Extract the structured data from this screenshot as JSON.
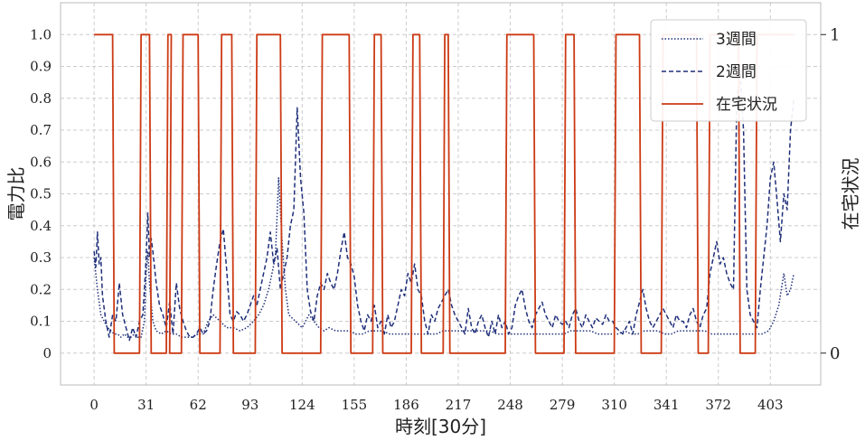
{
  "chart_data": {
    "type": "line",
    "xlabel": "時刻[30分]",
    "ylabel": "電力比",
    "ylabel_right": "在宅状況",
    "xlim": [
      -20,
      433
    ],
    "ylim": [
      -0.1,
      1.1
    ],
    "y2lim": [
      -0.1,
      1.1
    ],
    "x_ticks": [
      0,
      31,
      62,
      93,
      124,
      155,
      186,
      217,
      248,
      279,
      310,
      341,
      372,
      403
    ],
    "y_ticks": [
      0,
      0.1,
      0.2,
      0.3,
      0.4,
      0.5,
      0.6,
      0.7,
      0.8,
      0.9,
      1.0
    ],
    "y_tick_labels": [
      "0",
      "0.1",
      "0.2",
      "0.3",
      "0.4",
      "0.5",
      "0.6",
      "0.7",
      "0.8",
      "0.9",
      "1.0"
    ],
    "y2_ticks": [
      0,
      1
    ],
    "y2_tick_labels": [
      "0",
      "1"
    ],
    "grid": true,
    "legend_position": "top-right",
    "colors": {
      "three_week": "#1f2f7a",
      "two_week": "#1f2f7a",
      "occupancy": "#cc3a14",
      "grid": "#cccccc",
      "frame": "#bbbbbb"
    },
    "series": [
      {
        "name": "3週間",
        "style": "dotted",
        "x": [
          0,
          2,
          4,
          6,
          8,
          10,
          12,
          14,
          16,
          18,
          20,
          22,
          24,
          26,
          28,
          30,
          31,
          32,
          33,
          35,
          37,
          40,
          43,
          46,
          49,
          52,
          55,
          58,
          62,
          65,
          68,
          71,
          75,
          79,
          83,
          87,
          91,
          95,
          98,
          101,
          104,
          106,
          108,
          110,
          112,
          114,
          116,
          120,
          124,
          128,
          131,
          134,
          137,
          140,
          144,
          148,
          152,
          156,
          160,
          164,
          168,
          172,
          176,
          180,
          184,
          188,
          192,
          196,
          200,
          204,
          208,
          212,
          216,
          220,
          224,
          228,
          232,
          236,
          240,
          244,
          248,
          252,
          256,
          260,
          264,
          268,
          272,
          276,
          280,
          284,
          288,
          292,
          296,
          300,
          304,
          308,
          312,
          316,
          320,
          324,
          328,
          332,
          336,
          340,
          344,
          348,
          352,
          356,
          360,
          364,
          368,
          372,
          375,
          378,
          382,
          386,
          390,
          394,
          398,
          402,
          405,
          408,
          411,
          413,
          415,
          417
        ],
        "y": [
          0.3,
          0.2,
          0.12,
          0.1,
          0.08,
          0.07,
          0.06,
          0.06,
          0.05,
          0.06,
          0.05,
          0.05,
          0.06,
          0.05,
          0.05,
          0.1,
          0.25,
          0.32,
          0.22,
          0.1,
          0.07,
          0.06,
          0.07,
          0.06,
          0.06,
          0.05,
          0.05,
          0.05,
          0.06,
          0.06,
          0.1,
          0.12,
          0.1,
          0.08,
          0.08,
          0.07,
          0.08,
          0.1,
          0.12,
          0.15,
          0.2,
          0.25,
          0.3,
          0.55,
          0.35,
          0.2,
          0.12,
          0.1,
          0.08,
          0.12,
          0.1,
          0.08,
          0.07,
          0.08,
          0.07,
          0.07,
          0.07,
          0.06,
          0.06,
          0.07,
          0.07,
          0.07,
          0.06,
          0.06,
          0.06,
          0.06,
          0.06,
          0.06,
          0.06,
          0.06,
          0.07,
          0.07,
          0.07,
          0.07,
          0.07,
          0.07,
          0.07,
          0.07,
          0.06,
          0.06,
          0.06,
          0.06,
          0.06,
          0.06,
          0.06,
          0.06,
          0.06,
          0.06,
          0.06,
          0.07,
          0.07,
          0.07,
          0.07,
          0.06,
          0.06,
          0.06,
          0.06,
          0.07,
          0.06,
          0.06,
          0.07,
          0.07,
          0.07,
          0.06,
          0.06,
          0.07,
          0.07,
          0.07,
          0.07,
          0.07,
          0.06,
          0.06,
          0.06,
          0.06,
          0.06,
          0.06,
          0.06,
          0.06,
          0.06,
          0.07,
          0.1,
          0.15,
          0.25,
          0.18,
          0.2,
          0.25
        ]
      },
      {
        "name": "2週間",
        "style": "dashed",
        "x": [
          0,
          1,
          2,
          3,
          4,
          5,
          7,
          9,
          11,
          13,
          15,
          17,
          19,
          21,
          23,
          25,
          27,
          29,
          30,
          31,
          32,
          33,
          34,
          35,
          37,
          39,
          41,
          43,
          45,
          47,
          49,
          51,
          53,
          55,
          57,
          59,
          61,
          63,
          65,
          67,
          69,
          71,
          73,
          75,
          77,
          79,
          81,
          83,
          85,
          87,
          89,
          91,
          93,
          95,
          97,
          99,
          101,
          103,
          105,
          107,
          109,
          111,
          113,
          115,
          117,
          119,
          121,
          123,
          125,
          127,
          129,
          131,
          133,
          135,
          137,
          139,
          141,
          143,
          145,
          147,
          149,
          151,
          153,
          155,
          157,
          159,
          161,
          163,
          165,
          167,
          169,
          171,
          173,
          175,
          177,
          179,
          181,
          183,
          185,
          187,
          189,
          191,
          193,
          195,
          197,
          199,
          201,
          203,
          205,
          207,
          209,
          211,
          213,
          215,
          217,
          219,
          221,
          223,
          225,
          227,
          229,
          231,
          233,
          235,
          237,
          239,
          241,
          243,
          245,
          247,
          249,
          251,
          253,
          255,
          257,
          259,
          261,
          263,
          265,
          267,
          269,
          271,
          273,
          275,
          277,
          279,
          281,
          283,
          285,
          287,
          289,
          291,
          293,
          295,
          297,
          299,
          301,
          303,
          305,
          307,
          309,
          311,
          313,
          315,
          317,
          319,
          321,
          323,
          325,
          327,
          329,
          331,
          333,
          335,
          337,
          339,
          341,
          343,
          345,
          347,
          349,
          351,
          353,
          355,
          357,
          359,
          361,
          363,
          365,
          367,
          369,
          371,
          373,
          375,
          377,
          379,
          381,
          383,
          385,
          387,
          389,
          391,
          393,
          395,
          397,
          399,
          401,
          403,
          405,
          407,
          409,
          411,
          413,
          415,
          417
        ],
        "y": [
          0.32,
          0.27,
          0.38,
          0.28,
          0.3,
          0.18,
          0.1,
          0.05,
          0.12,
          0.1,
          0.22,
          0.12,
          0.08,
          0.04,
          0.08,
          0.05,
          0.1,
          0.12,
          0.2,
          0.3,
          0.44,
          0.3,
          0.36,
          0.32,
          0.22,
          0.15,
          0.12,
          0.08,
          0.16,
          0.06,
          0.22,
          0.14,
          0.1,
          0.07,
          0.05,
          0.05,
          0.06,
          0.08,
          0.06,
          0.07,
          0.1,
          0.2,
          0.28,
          0.35,
          0.39,
          0.26,
          0.12,
          0.1,
          0.13,
          0.12,
          0.1,
          0.12,
          0.15,
          0.18,
          0.15,
          0.2,
          0.25,
          0.3,
          0.38,
          0.28,
          0.33,
          0.2,
          0.25,
          0.3,
          0.4,
          0.45,
          0.77,
          0.55,
          0.44,
          0.2,
          0.13,
          0.1,
          0.18,
          0.22,
          0.2,
          0.25,
          0.22,
          0.2,
          0.25,
          0.32,
          0.38,
          0.3,
          0.28,
          0.24,
          0.15,
          0.1,
          0.07,
          0.12,
          0.1,
          0.15,
          0.08,
          0.1,
          0.06,
          0.12,
          0.08,
          0.1,
          0.15,
          0.2,
          0.18,
          0.25,
          0.22,
          0.28,
          0.2,
          0.18,
          0.1,
          0.06,
          0.12,
          0.1,
          0.14,
          0.16,
          0.18,
          0.2,
          0.15,
          0.12,
          0.1,
          0.08,
          0.06,
          0.14,
          0.08,
          0.06,
          0.1,
          0.12,
          0.08,
          0.05,
          0.1,
          0.06,
          0.12,
          0.08,
          0.1,
          0.06,
          0.08,
          0.15,
          0.18,
          0.2,
          0.14,
          0.1,
          0.08,
          0.12,
          0.14,
          0.16,
          0.12,
          0.1,
          0.08,
          0.12,
          0.1,
          0.09,
          0.1,
          0.08,
          0.12,
          0.14,
          0.1,
          0.08,
          0.12,
          0.1,
          0.08,
          0.11,
          0.1,
          0.09,
          0.12,
          0.1,
          0.1,
          0.08,
          0.07,
          0.06,
          0.08,
          0.1,
          0.06,
          0.12,
          0.16,
          0.2,
          0.14,
          0.1,
          0.08,
          0.1,
          0.12,
          0.14,
          0.12,
          0.1,
          0.08,
          0.12,
          0.1,
          0.1,
          0.08,
          0.12,
          0.14,
          0.1,
          0.08,
          0.12,
          0.14,
          0.25,
          0.3,
          0.35,
          0.28,
          0.3,
          0.25,
          0.22,
          0.2,
          0.8,
          0.88,
          0.7,
          0.2,
          0.12,
          0.1,
          0.08,
          0.2,
          0.3,
          0.4,
          0.55,
          0.6,
          0.48,
          0.35,
          0.5,
          0.45,
          0.7,
          0.8
        ]
      },
      {
        "name": "在宅状況",
        "style": "solid",
        "x": [
          0,
          11,
          12,
          27,
          28,
          33,
          34,
          43,
          44,
          46,
          45,
          46,
          52,
          53,
          62,
          63,
          75,
          76,
          82,
          83,
          96,
          97,
          111,
          112,
          135,
          136,
          152,
          153,
          166,
          167,
          171,
          172,
          189,
          190,
          194,
          195,
          208,
          209,
          211,
          212,
          245,
          246,
          262,
          263,
          280,
          281,
          286,
          287,
          310,
          311,
          325,
          326,
          338,
          339,
          359,
          360,
          366,
          367,
          384,
          385,
          394,
          395,
          417
        ],
        "y": [
          1,
          1,
          0,
          0,
          1,
          1,
          0,
          0,
          1,
          1,
          0,
          0,
          0,
          1,
          1,
          0,
          0,
          1,
          1,
          0,
          0,
          1,
          1,
          0,
          0,
          1,
          1,
          0,
          0,
          1,
          1,
          0,
          0,
          1,
          1,
          0,
          0,
          1,
          1,
          0,
          0,
          1,
          1,
          0,
          0,
          1,
          1,
          0,
          0,
          1,
          1,
          0,
          0,
          1,
          1,
          0,
          0,
          1,
          1,
          0,
          0,
          1,
          1
        ]
      }
    ]
  }
}
